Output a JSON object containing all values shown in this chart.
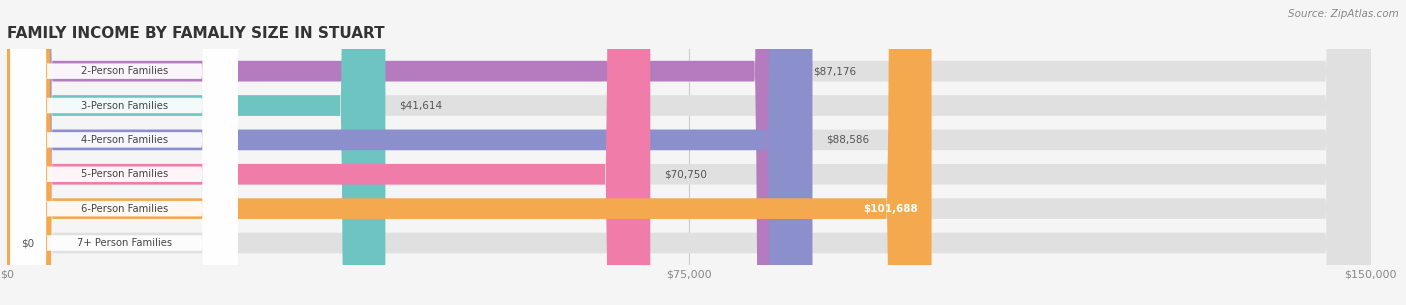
{
  "title": "FAMILY INCOME BY FAMALIY SIZE IN STUART",
  "source": "Source: ZipAtlas.com",
  "categories": [
    "2-Person Families",
    "3-Person Families",
    "4-Person Families",
    "5-Person Families",
    "6-Person Families",
    "7+ Person Families"
  ],
  "values": [
    87176,
    41614,
    88586,
    70750,
    101688,
    0
  ],
  "bar_colors": [
    "#b57bbf",
    "#6ec4c1",
    "#8b8fcc",
    "#f07caa",
    "#f5a94e",
    "#f0a0a0"
  ],
  "value_labels": [
    "$87,176",
    "$41,614",
    "$88,586",
    "$70,750",
    "$101,688",
    "$0"
  ],
  "xlim": [
    0,
    150000
  ],
  "xticks": [
    0,
    75000,
    150000
  ],
  "xtick_labels": [
    "$0",
    "$75,000",
    "$150,000"
  ],
  "background_color": "#f5f5f5",
  "bar_background_color": "#e0e0e0",
  "title_fontsize": 11,
  "bar_height": 0.6,
  "figsize": [
    14.06,
    3.05
  ]
}
